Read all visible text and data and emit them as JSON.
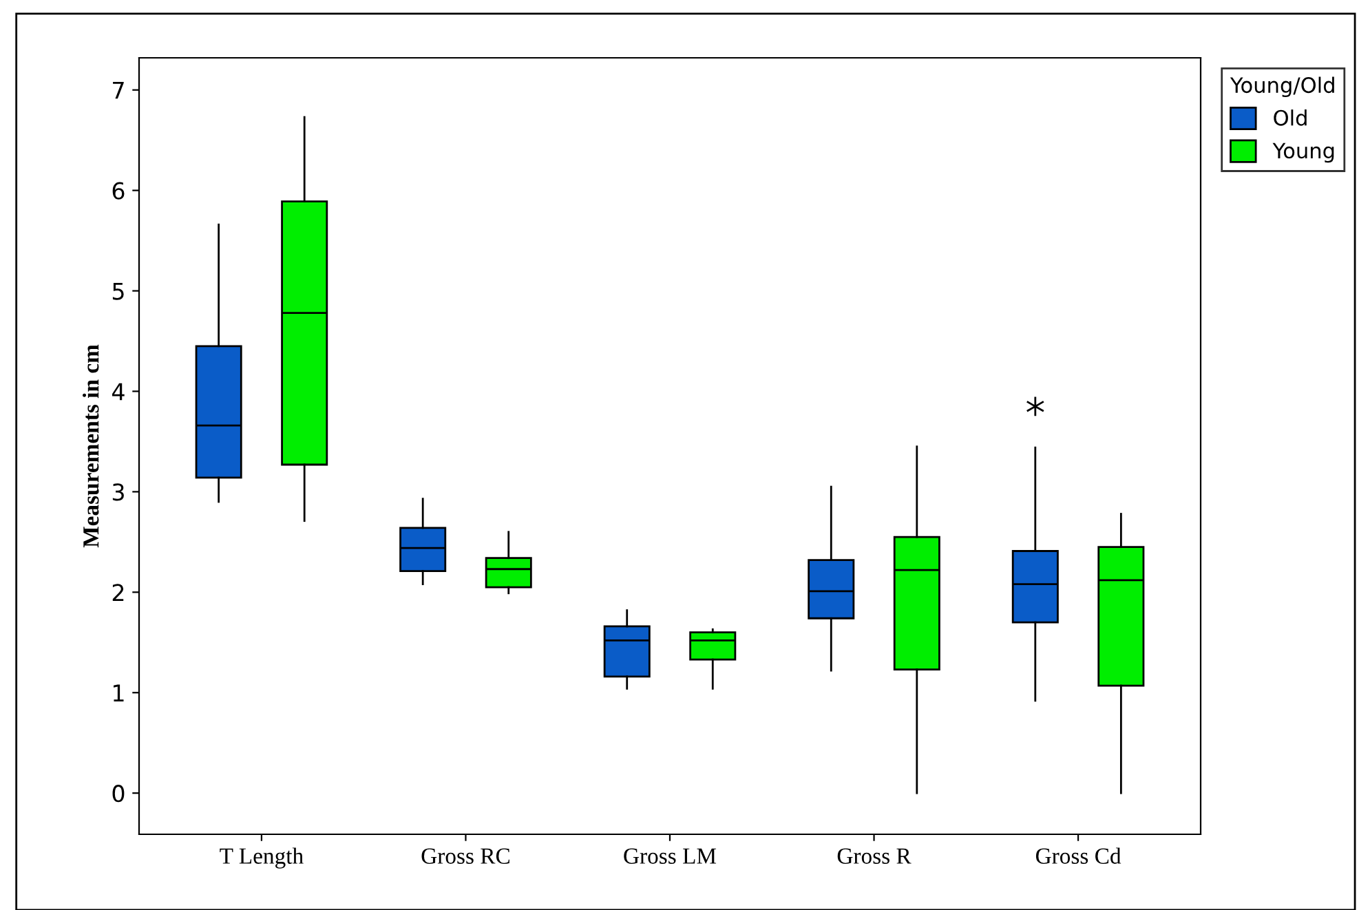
{
  "chart_data": {
    "type": "box",
    "ylabel": "Measurements in cm",
    "legend_title": "Young/Old",
    "categories": [
      "T Length",
      "Gross RC",
      "Gross LM",
      "Gross R",
      "Gross Cd"
    ],
    "series": [
      {
        "name": "Old",
        "color": "#0a5cc8",
        "boxes": [
          {
            "low": 2.9,
            "q1": 3.14,
            "median": 3.66,
            "q3": 4.45,
            "high": 5.66
          },
          {
            "low": 2.08,
            "q1": 2.21,
            "median": 2.44,
            "q3": 2.64,
            "high": 2.93
          },
          {
            "low": 1.04,
            "q1": 1.16,
            "median": 1.52,
            "q3": 1.66,
            "high": 1.82
          },
          {
            "low": 1.22,
            "q1": 1.74,
            "median": 2.01,
            "q3": 2.32,
            "high": 3.05
          },
          {
            "low": 0.92,
            "q1": 1.7,
            "median": 2.08,
            "q3": 2.41,
            "high": 3.44,
            "outliers": [
              3.85
            ]
          }
        ]
      },
      {
        "name": "Young",
        "color": "#00ee00",
        "boxes": [
          {
            "low": 2.71,
            "q1": 3.27,
            "median": 4.78,
            "q3": 5.89,
            "high": 6.73
          },
          {
            "low": 1.99,
            "q1": 2.05,
            "median": 2.23,
            "q3": 2.34,
            "high": 2.6
          },
          {
            "low": 1.04,
            "q1": 1.33,
            "median": 1.52,
            "q3": 1.6,
            "high": 1.63
          },
          {
            "low": 0,
            "q1": 1.23,
            "median": 2.22,
            "q3": 2.55,
            "high": 3.45
          },
          {
            "low": 0,
            "q1": 1.07,
            "median": 2.12,
            "q3": 2.45,
            "high": 2.78
          }
        ]
      }
    ],
    "ylim": [
      -0.41,
      7.32
    ],
    "yticks": [
      0,
      1,
      2,
      3,
      4,
      5,
      6,
      7
    ],
    "grid": false,
    "legend": "top right",
    "marker": "cross"
  }
}
